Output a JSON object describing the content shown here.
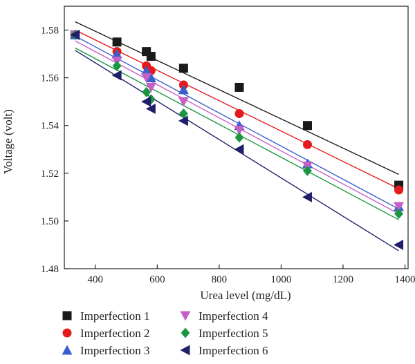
{
  "chart_data": {
    "type": "scatter",
    "title": "",
    "xlabel": "Urea level (mg/dL)",
    "ylabel": "Voltage (volt)",
    "xlim": [
      300,
      1410
    ],
    "ylim": [
      1.48,
      1.59
    ],
    "x_ticks": [
      400,
      600,
      800,
      1000,
      1200,
      1400
    ],
    "y_ticks": [
      1.48,
      1.5,
      1.52,
      1.54,
      1.56,
      1.58
    ],
    "x_tick_labels": [
      "400",
      "600",
      "800",
      "1000",
      "1200",
      "1400"
    ],
    "y_tick_labels": [
      "1.48",
      "1.50",
      "1.52",
      "1.54",
      "1.56",
      "1.58"
    ],
    "grid": false,
    "legend_position": "bottom",
    "series": [
      {
        "name": "Imperfection 1",
        "color": "#1a1a1a",
        "marker": "square",
        "x": [
          335,
          470,
          565,
          580,
          685,
          865,
          1085,
          1380
        ],
        "y": [
          1.578,
          1.575,
          1.571,
          1.569,
          1.564,
          1.556,
          1.54,
          1.515
        ],
        "fit": {
          "x": [
            335,
            1380
          ],
          "y": [
            1.5835,
            1.5195
          ]
        }
      },
      {
        "name": "Imperfection 2",
        "color": "#e41a1c",
        "marker": "circle",
        "x": [
          335,
          470,
          565,
          580,
          685,
          865,
          1085,
          1380
        ],
        "y": [
          1.578,
          1.571,
          1.565,
          1.563,
          1.557,
          1.545,
          1.532,
          1.513
        ],
        "fit": {
          "x": [
            335,
            1380
          ],
          "y": [
            1.58,
            1.5135
          ]
        }
      },
      {
        "name": "Imperfection 3",
        "color": "#3a5fcd",
        "marker": "triangle-up",
        "x": [
          335,
          470,
          565,
          580,
          685,
          865,
          1085,
          1380
        ],
        "y": [
          1.578,
          1.57,
          1.563,
          1.56,
          1.555,
          1.54,
          1.524,
          1.506
        ],
        "fit": {
          "x": [
            335,
            1380
          ],
          "y": [
            1.5775,
            1.505
          ]
        }
      },
      {
        "name": "Imperfection 4",
        "color": "#c65fc6",
        "marker": "triangle-down",
        "x": [
          335,
          470,
          565,
          580,
          685,
          865,
          1085,
          1380
        ],
        "y": [
          1.578,
          1.567,
          1.56,
          1.556,
          1.55,
          1.538,
          1.523,
          1.506
        ],
        "fit": {
          "x": [
            335,
            1380
          ],
          "y": [
            1.5755,
            1.503
          ]
        }
      },
      {
        "name": "Imperfection 5",
        "color": "#1a9641",
        "marker": "diamond",
        "x": [
          335,
          470,
          565,
          580,
          685,
          865,
          1085,
          1380
        ],
        "y": [
          1.578,
          1.565,
          1.554,
          1.551,
          1.545,
          1.535,
          1.521,
          1.503
        ],
        "fit": {
          "x": [
            335,
            1380
          ],
          "y": [
            1.5725,
            1.5005
          ]
        }
      },
      {
        "name": "Imperfection 6",
        "color": "#1f1f6b",
        "marker": "triangle-left",
        "x": [
          335,
          470,
          565,
          580,
          685,
          865,
          1085,
          1380
        ],
        "y": [
          1.578,
          1.561,
          1.55,
          1.547,
          1.542,
          1.53,
          1.51,
          1.49
        ],
        "fit": {
          "x": [
            335,
            1380
          ],
          "y": [
            1.5715,
            1.4875
          ]
        }
      }
    ]
  }
}
